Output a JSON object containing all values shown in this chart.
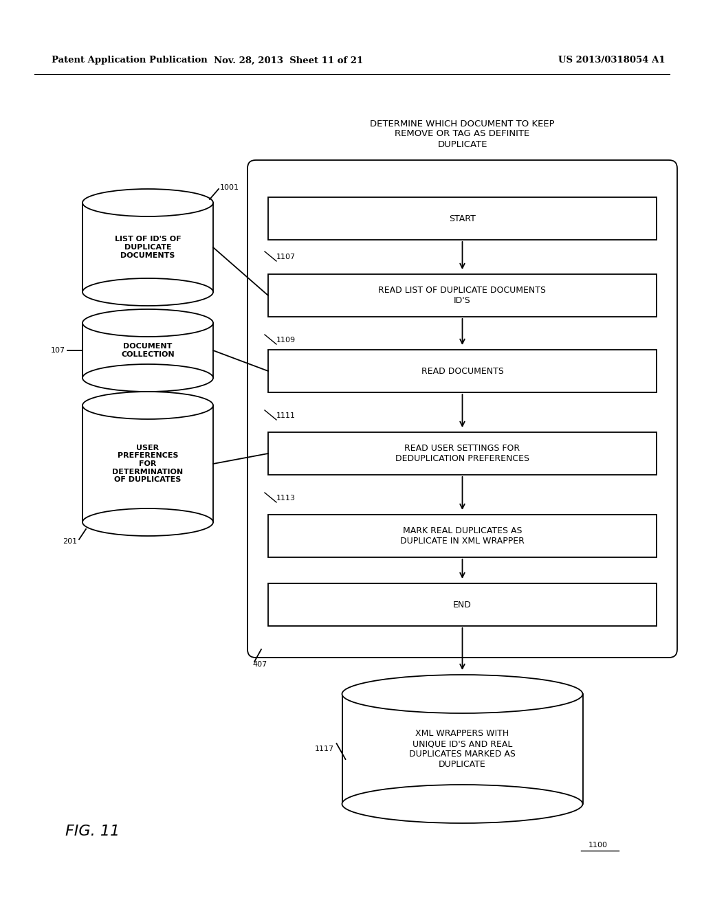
{
  "header_left": "Patent Application Publication",
  "header_mid": "Nov. 28, 2013  Sheet 11 of 21",
  "header_right": "US 2013/0318054 A1",
  "fig_label": "FIG. 11",
  "fig_number": "1100",
  "title_text": "DETERMINE WHICH DOCUMENT TO KEEP\nREMOVE OR TAG AS DEFINITE\nDUPLICATE",
  "box_labels": [
    "START",
    "READ LIST OF DUPLICATE DOCUMENTS\nID'S",
    "READ DOCUMENTS",
    "READ USER SETTINGS FOR\nDEDUPLICATION PREFERENCES",
    "MARK REAL DUPLICATES AS\nDUPLICATE IN XML WRAPPER",
    "END"
  ],
  "step_labels": [
    "1107",
    "1109",
    "1111",
    "1113"
  ],
  "cyl_labels": [
    "LIST OF ID'S OF\nDUPLICATE\nDOCUMENTS",
    "DOCUMENT\nCOLLECTION",
    "USER\nPREFERENCES\nFOR\nDETERMINATION\nOF DUPLICATES"
  ],
  "cyl_ids": [
    "1001",
    "107",
    "201"
  ],
  "output_cyl_label": "XML WRAPPERS WITH\nUNIQUE ID'S AND REAL\nDUPLICATES MARKED AS\nDUPLICATE",
  "output_cyl_id": "1117",
  "outer_box_id": "407",
  "ref_num": "1100",
  "bg_color": "#ffffff"
}
